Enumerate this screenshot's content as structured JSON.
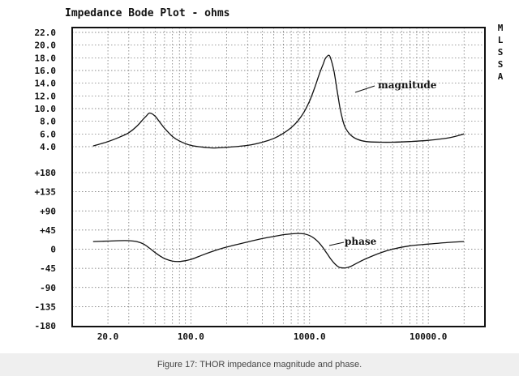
{
  "chart_data": {
    "type": "line",
    "title": "Impedance Bode Plot - ohms",
    "side_label": [
      "M",
      "L",
      "S",
      "S",
      "A"
    ],
    "x_scale": "log",
    "xlim": [
      10,
      30000
    ],
    "x_ticks": [
      20,
      100,
      1000,
      10000
    ],
    "x_tick_labels": [
      "20.0",
      "100.0",
      "1000.0",
      "10000.0"
    ],
    "magnitude_axis": {
      "ylim": [
        4,
        22
      ],
      "ticks": [
        4,
        6,
        8,
        10,
        12,
        14,
        16,
        18,
        20,
        22
      ],
      "tick_labels": [
        "4.0",
        "6.0",
        "8.0",
        "10.0",
        "12.0",
        "14.0",
        "16.0",
        "18.0",
        "20.0",
        "22.0"
      ]
    },
    "phase_axis": {
      "ylim": [
        -180,
        180
      ],
      "ticks": [
        180,
        135,
        90,
        45,
        0,
        -45,
        -90,
        -135,
        -180
      ],
      "tick_labels": [
        "+180",
        "+135",
        "+90",
        "+45",
        "0",
        "-45",
        "-90",
        "-135",
        "-180"
      ]
    },
    "grid": true,
    "series": [
      {
        "name": "magnitude",
        "x": [
          15,
          20,
          25,
          30,
          35,
          40,
          42,
          45,
          50,
          55,
          60,
          70,
          80,
          100,
          130,
          160,
          200,
          300,
          400,
          500,
          600,
          700,
          800,
          900,
          1000,
          1100,
          1200,
          1300,
          1350,
          1400,
          1450,
          1500,
          1600,
          1700,
          1800,
          1900,
          2000,
          2200,
          2500,
          3000,
          4000,
          5000,
          7000,
          10000,
          15000,
          20000
        ],
        "values": [
          4.1,
          4.8,
          5.5,
          6.2,
          7.2,
          8.4,
          8.8,
          9.3,
          8.8,
          7.8,
          6.9,
          5.6,
          4.9,
          4.2,
          3.9,
          3.8,
          3.9,
          4.2,
          4.7,
          5.3,
          6.1,
          7.0,
          8.1,
          9.5,
          11.2,
          13.2,
          15.3,
          17.0,
          17.8,
          18.2,
          18.4,
          18.0,
          16.0,
          13.0,
          10.2,
          8.2,
          7.0,
          5.9,
          5.2,
          4.8,
          4.7,
          4.7,
          4.8,
          5.0,
          5.4,
          6.0
        ]
      },
      {
        "name": "phase",
        "x": [
          15,
          20,
          25,
          30,
          35,
          40,
          45,
          50,
          55,
          60,
          70,
          80,
          90,
          100,
          110,
          130,
          160,
          200,
          300,
          400,
          500,
          600,
          700,
          800,
          900,
          1000,
          1100,
          1200,
          1300,
          1400,
          1500,
          1600,
          1700,
          1800,
          2000,
          2200,
          2500,
          3000,
          4000,
          5000,
          7000,
          10000,
          15000,
          20000
        ],
        "values": [
          18,
          19,
          20,
          20,
          18,
          12,
          2,
          -8,
          -16,
          -22,
          -28,
          -29,
          -27,
          -24,
          -20,
          -12,
          -3,
          5,
          17,
          25,
          30,
          34,
          36,
          37,
          36,
          32,
          25,
          15,
          3,
          -10,
          -22,
          -32,
          -39,
          -43,
          -44,
          -41,
          -33,
          -22,
          -8,
          0,
          8,
          12,
          16,
          18
        ]
      }
    ]
  },
  "caption": "Figure 17: THOR impedance magnitude and phase."
}
